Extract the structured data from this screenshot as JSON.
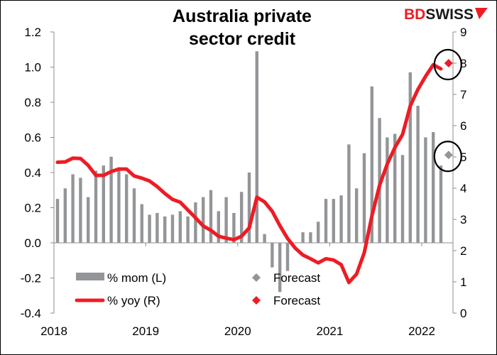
{
  "chart_data": {
    "type": "bar+line",
    "title": [
      "Australia private",
      "sector credit"
    ],
    "logo": {
      "part1": "BD",
      "part2": "SWISS",
      "color1": "#ed1c24",
      "color2": "#1a1a1a"
    },
    "x_tick_labels": [
      "2018",
      "2019",
      "2020",
      "2021",
      "2022"
    ],
    "start_month": "2018-01",
    "left_axis": {
      "ylim": [
        -0.4,
        1.2
      ],
      "ticks": [
        "-0.4",
        "-0.2",
        "0.0",
        "0.2",
        "0.4",
        "0.6",
        "0.8",
        "1.0",
        "1.2"
      ]
    },
    "right_axis": {
      "ylim": [
        0,
        9
      ],
      "ticks": [
        "0",
        "1",
        "2",
        "3",
        "4",
        "5",
        "6",
        "7",
        "8",
        "9"
      ]
    },
    "grid": false,
    "legend_placement": "bottom-left",
    "series": [
      {
        "name": "% mom (L)",
        "kind": "bar",
        "axis": "left",
        "color": "#939598",
        "values": [
          0.25,
          0.31,
          0.39,
          0.37,
          0.26,
          0.41,
          0.44,
          0.49,
          0.43,
          0.39,
          0.31,
          0.22,
          0.16,
          0.17,
          0.15,
          0.16,
          0.18,
          0.15,
          0.23,
          0.26,
          0.3,
          0.18,
          0.26,
          0.17,
          0.29,
          0.4,
          1.09,
          0.05,
          -0.14,
          -0.28,
          -0.16,
          0.0,
          0.06,
          0.06,
          0.12,
          0.25,
          0.25,
          0.27,
          0.56,
          0.31,
          0.51,
          0.89,
          0.71,
          0.6,
          0.62,
          0.5,
          0.97,
          0.78,
          0.6,
          0.63,
          0.44
        ]
      },
      {
        "name": "% yoy (R)",
        "kind": "line",
        "axis": "right",
        "color": "#ed1c24",
        "values": [
          4.83,
          4.84,
          4.96,
          4.95,
          4.73,
          4.41,
          4.41,
          4.53,
          4.61,
          4.61,
          4.39,
          4.32,
          4.23,
          4.05,
          3.83,
          3.64,
          3.55,
          3.3,
          3.05,
          2.79,
          2.65,
          2.46,
          2.4,
          2.35,
          2.46,
          2.73,
          3.71,
          3.56,
          3.26,
          2.8,
          2.39,
          2.08,
          1.86,
          1.74,
          1.61,
          1.74,
          1.7,
          1.55,
          0.98,
          1.25,
          1.93,
          3.11,
          4.09,
          4.77,
          5.3,
          5.72,
          6.63,
          7.16,
          7.58,
          7.95,
          7.82
        ]
      }
    ],
    "forecasts": [
      {
        "name": "Forecast",
        "axis": "left",
        "month": "2022-04",
        "value": 0.5,
        "color": "#939598"
      },
      {
        "name": "Forecast",
        "axis": "right",
        "month": "2022-04",
        "value": 8.0,
        "color": "#ed1c24"
      }
    ],
    "annotations": "black circles around both forecast points"
  }
}
